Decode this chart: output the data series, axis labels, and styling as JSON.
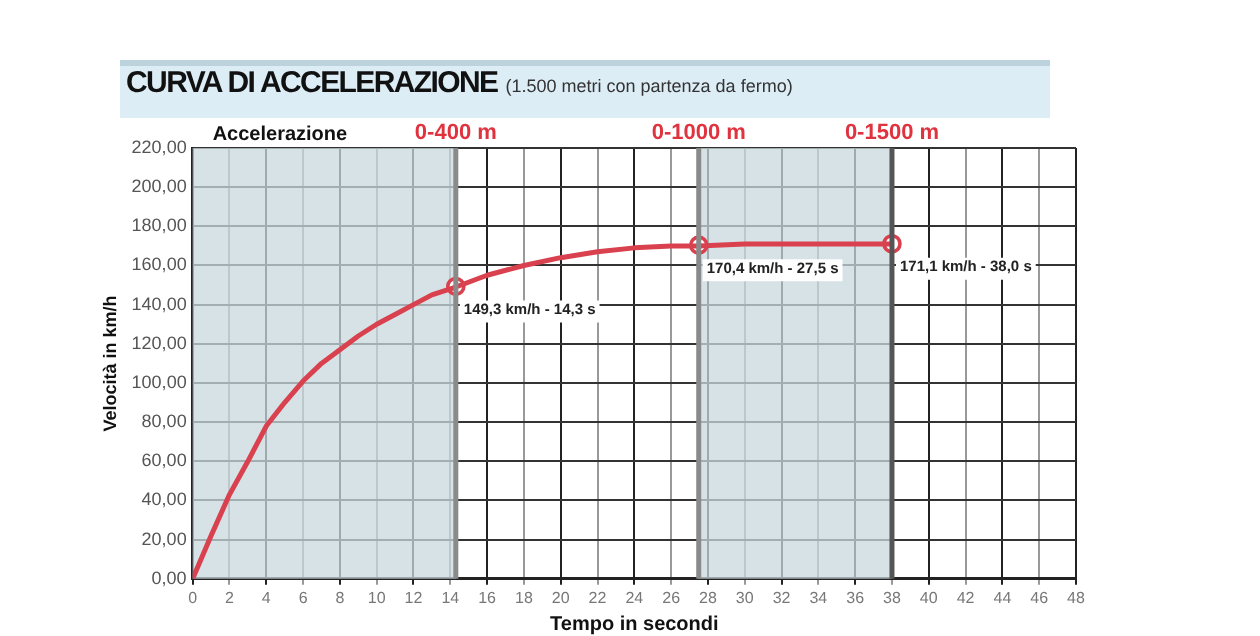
{
  "chart_data": {
    "type": "line",
    "title": "CURVA DI ACCELERAZIONE",
    "subtitle": "(1.500 metri con partenza da fermo)",
    "xlabel": "Tempo in secondi",
    "ylabel": "Velocità in km/h",
    "series": [
      {
        "color": "#d9414f",
        "marker": "none",
        "x": [
          0,
          1,
          2,
          3,
          4,
          5,
          6,
          7,
          8,
          9,
          10,
          11,
          12,
          13,
          14.3,
          16,
          18,
          20,
          22,
          24,
          26,
          27.5,
          30,
          34,
          38
        ],
        "values": [
          0,
          22,
          43,
          60,
          78,
          90,
          101,
          110,
          117,
          124,
          130,
          135,
          140,
          145,
          149,
          155,
          160,
          164,
          167,
          169,
          170,
          170,
          171,
          171,
          171
        ]
      },
      {
        "type": "scatter",
        "color": "#d9414f",
        "marker": "circle",
        "x": [
          14.3,
          27.5,
          38
        ],
        "values": [
          149.3,
          170.4,
          171.1
        ]
      }
    ],
    "xlim": [
      0,
      48
    ],
    "xticks": [
      0,
      2,
      4,
      6,
      8,
      10,
      12,
      14,
      16,
      18,
      20,
      22,
      24,
      26,
      28,
      30,
      32,
      34,
      36,
      38,
      40,
      42,
      44,
      46,
      48
    ],
    "ylim": [
      0,
      220
    ],
    "yticks": [
      {
        "value": 0,
        "label": "0,00"
      },
      {
        "value": 20,
        "label": "20,00"
      },
      {
        "value": 40,
        "label": "40,00"
      },
      {
        "value": 60,
        "label": "60,00"
      },
      {
        "value": 80,
        "label": "80,00"
      },
      {
        "value": 100,
        "label": "100,00"
      },
      {
        "value": 120,
        "label": "120,00"
      },
      {
        "value": 140,
        "label": "140,00"
      },
      {
        "value": 160,
        "label": "160,00"
      },
      {
        "value": 180,
        "label": "180,00"
      },
      {
        "value": 200,
        "label": "200,00"
      },
      {
        "value": 220,
        "label": "220,00"
      }
    ],
    "bands": [
      {
        "axis": "x",
        "from": 0,
        "to": 14.3,
        "label": "Accelerazione",
        "color": "#c9d8df"
      },
      {
        "axis": "x",
        "from": 27.5,
        "to": 38,
        "label": null,
        "color": "#c9d8df"
      }
    ],
    "ref_lines": [
      {
        "axis": "x",
        "value": 14.3,
        "label": "0-400 m",
        "color": "#8a8a8a"
      },
      {
        "axis": "x",
        "value": 27.5,
        "label": "0-1000 m",
        "color": "#8a8a8a"
      },
      {
        "axis": "x",
        "value": 38,
        "label": "0-1500 m",
        "color": "#555555"
      }
    ],
    "annotations": [
      {
        "text": "149,3 km/h - 14,3 s",
        "x": 14.3,
        "y": 149.3
      },
      {
        "text": "170,4 km/h - 27,5 s",
        "x": 27.5,
        "y": 170.4
      },
      {
        "text": "171,1 km/h - 38,0 s",
        "x": 38,
        "y": 171.1
      }
    ],
    "grid": true,
    "legend": false
  }
}
